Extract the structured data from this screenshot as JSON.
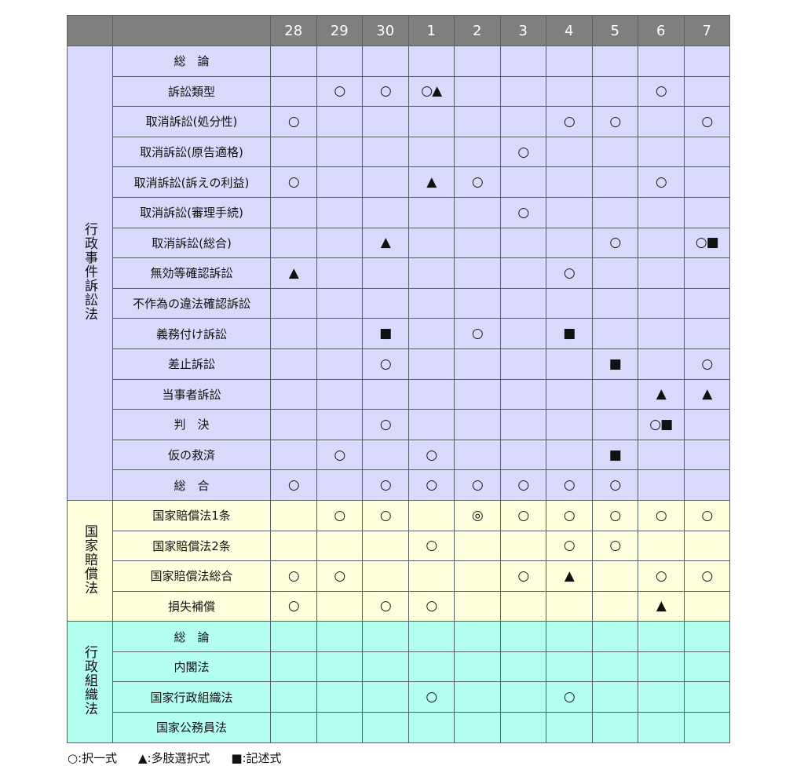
{
  "header": {
    "years": [
      "28",
      "29",
      "30",
      "1",
      "2",
      "3",
      "4",
      "5",
      "6",
      "7"
    ]
  },
  "colors": {
    "header": "#7f7f7f",
    "group_0": "#d9d9fb",
    "group_1": "#ffffdd",
    "group_2": "#b3fff0"
  },
  "groups": [
    {
      "name": "行政事件訴訟法",
      "rows": [
        {
          "topic": "総　論",
          "cells": [
            "",
            "",
            "",
            "",
            "",
            "",
            "",
            "",
            "",
            ""
          ]
        },
        {
          "topic": "訴訟類型",
          "cells": [
            "",
            "○",
            "○",
            "○▲",
            "",
            "",
            "",
            "",
            "○",
            ""
          ]
        },
        {
          "topic": "取消訴訟(処分性)",
          "cells": [
            "○",
            "",
            "",
            "",
            "",
            "",
            "○",
            "○",
            "",
            "○"
          ]
        },
        {
          "topic": "取消訴訟(原告適格)",
          "cells": [
            "",
            "",
            "",
            "",
            "",
            "○",
            "",
            "",
            "",
            ""
          ]
        },
        {
          "topic": "取消訴訟(訴えの利益)",
          "cells": [
            "○",
            "",
            "",
            "▲",
            "○",
            "",
            "",
            "",
            "○",
            ""
          ]
        },
        {
          "topic": "取消訴訟(審理手続)",
          "cells": [
            "",
            "",
            "",
            "",
            "",
            "○",
            "",
            "",
            "",
            ""
          ]
        },
        {
          "topic": "取消訴訟(総合)",
          "cells": [
            "",
            "",
            "▲",
            "",
            "",
            "",
            "",
            "○",
            "",
            "○■"
          ]
        },
        {
          "topic": "無効等確認訴訟",
          "cells": [
            "▲",
            "",
            "",
            "",
            "",
            "",
            "○",
            "",
            "",
            ""
          ]
        },
        {
          "topic": "不作為の違法確認訴訟",
          "cells": [
            "",
            "",
            "",
            "",
            "",
            "",
            "",
            "",
            "",
            ""
          ]
        },
        {
          "topic": "義務付け訴訟",
          "cells": [
            "",
            "",
            "■",
            "",
            "○",
            "",
            "■",
            "",
            "",
            ""
          ]
        },
        {
          "topic": "差止訴訟",
          "cells": [
            "",
            "",
            "○",
            "",
            "",
            "",
            "",
            "■",
            "",
            "○"
          ]
        },
        {
          "topic": "当事者訴訟",
          "cells": [
            "",
            "",
            "",
            "",
            "",
            "",
            "",
            "",
            "▲",
            "▲"
          ]
        },
        {
          "topic": "判　決",
          "cells": [
            "",
            "",
            "○",
            "",
            "",
            "",
            "",
            "",
            "○■",
            ""
          ]
        },
        {
          "topic": "仮の救済",
          "cells": [
            "",
            "○",
            "",
            "○",
            "",
            "",
            "",
            "■",
            "",
            ""
          ]
        },
        {
          "topic": "総　合",
          "cells": [
            "○",
            "",
            "○",
            "○",
            "○",
            "○",
            "○",
            "○",
            "",
            ""
          ]
        }
      ]
    },
    {
      "name": "国家賠償法",
      "rows": [
        {
          "topic": "国家賠償法1条",
          "cells": [
            "",
            "○",
            "○",
            "",
            "◎",
            "○",
            "○",
            "○",
            "○",
            "○"
          ]
        },
        {
          "topic": "国家賠償法2条",
          "cells": [
            "",
            "",
            "",
            "○",
            "",
            "",
            "○",
            "○",
            "",
            ""
          ]
        },
        {
          "topic": "国家賠償法総合",
          "cells": [
            "○",
            "○",
            "",
            "",
            "",
            "○",
            "▲",
            "",
            "○",
            "○"
          ]
        },
        {
          "topic": "損失補償",
          "cells": [
            "○",
            "",
            "○",
            "○",
            "",
            "",
            "",
            "",
            "▲",
            ""
          ]
        }
      ]
    },
    {
      "name": "行政組織法",
      "rows": [
        {
          "topic": "総　論",
          "cells": [
            "",
            "",
            "",
            "",
            "",
            "",
            "",
            "",
            "",
            ""
          ]
        },
        {
          "topic": "内閣法",
          "cells": [
            "",
            "",
            "",
            "",
            "",
            "",
            "",
            "",
            "",
            ""
          ]
        },
        {
          "topic": "国家行政組織法",
          "cells": [
            "",
            "",
            "",
            "○",
            "",
            "",
            "○",
            "",
            "",
            ""
          ]
        },
        {
          "topic": "国家公務員法",
          "cells": [
            "",
            "",
            "",
            "",
            "",
            "",
            "",
            "",
            "",
            ""
          ]
        }
      ]
    }
  ],
  "legend": [
    "○:択一式",
    "▲:多肢選択式",
    "■:記述式"
  ]
}
